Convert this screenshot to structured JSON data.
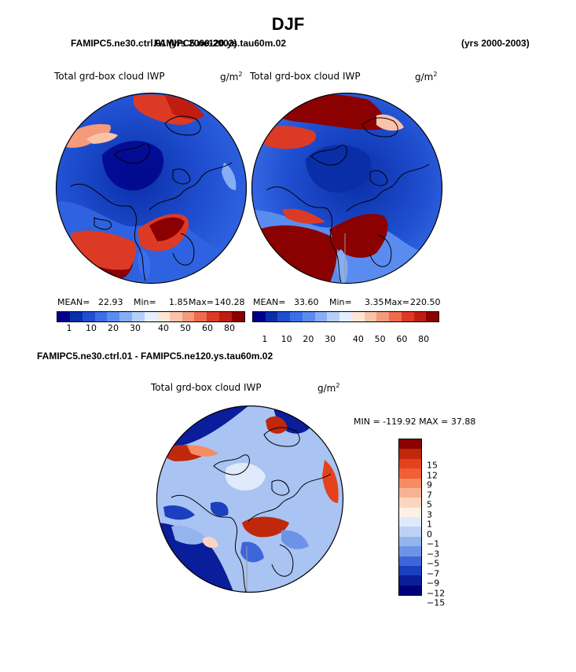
{
  "title": "DJF",
  "panel_header_left_a": "FAMIPC5.ne30.ctrl.01 (yrs 2000-2003)",
  "panel_header_left_b": "FAMIPC5.ne120.ys.tau60m.02",
  "panel_header_right": "(yrs 2000-2003)",
  "diff_header": "FAMIPC5.ne30.ctrl.01 - FAMIPC5.ne120.ys.tau60m.02",
  "map_label": "Total grd-box cloud IWP",
  "units_base": "g/m",
  "units_exp": "2",
  "stat_labels": {
    "mean": "MEAN=",
    "min": "Min=",
    "max": "Max="
  },
  "panels": [
    {
      "mean": "22.93",
      "min": "1.85",
      "max": "140.28"
    },
    {
      "mean": "33.60",
      "min": "3.35",
      "max": "220.50"
    }
  ],
  "diff_minmax": "MIN = -119.92 MAX =  37.88",
  "colorbar_top": {
    "labels": [
      "1",
      "10",
      "20",
      "30",
      "40",
      "50",
      "60",
      "80"
    ],
    "colors": [
      "#00008b",
      "#0a2ea8",
      "#1f4fd0",
      "#3b6ee8",
      "#5a8cf0",
      "#86aef5",
      "#b5cff8",
      "#e3efff",
      "#fde6d6",
      "#f9c3a8",
      "#f59a7a",
      "#ee6b4d",
      "#dd3a26",
      "#bf1d10",
      "#8b0000"
    ]
  },
  "colorbar_diff": {
    "labels": [
      "15",
      "12",
      "9",
      "7",
      "5",
      "3",
      "1",
      "0",
      "−1",
      "−3",
      "−5",
      "−7",
      "−9",
      "−12",
      "−15"
    ],
    "colors": [
      "#8b0000",
      "#c0280c",
      "#e4421c",
      "#f25e35",
      "#f58c63",
      "#f9b294",
      "#fcd5c0",
      "#fdf0e6",
      "#dfeafb",
      "#bcd2f5",
      "#93b4ee",
      "#6d93e6",
      "#3e66db",
      "#1c3fc0",
      "#0a1d9b",
      "#00007a"
    ]
  }
}
